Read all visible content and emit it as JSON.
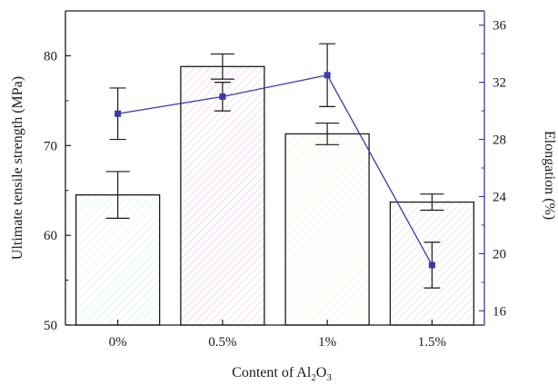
{
  "chart_data": {
    "type": "bar",
    "categories": [
      "0%",
      "0.5%",
      "1%",
      "1.5%"
    ],
    "xlabel": {
      "prefix": "Content of Al",
      "sub1": "2",
      "mid": "O",
      "sub2": "3"
    },
    "ylabel": "Ultimate tensile strength (MPa)",
    "y2label": "Elongation (%)",
    "ylim": [
      50,
      85
    ],
    "y2lim": [
      15,
      37
    ],
    "yticks": [
      50,
      60,
      70,
      80
    ],
    "y2ticks": [
      16,
      20,
      24,
      28,
      32,
      36
    ],
    "bars": {
      "name": "Ultimate tensile strength",
      "values": [
        64.5,
        78.8,
        71.3,
        63.7
      ],
      "errors": [
        2.6,
        1.4,
        1.2,
        0.9
      ],
      "fill_colors": [
        "#c9eef3",
        "#e9b7ea",
        "#f0efc9",
        "#dedbcd"
      ]
    },
    "line": {
      "name": "Elongation",
      "values": [
        29.8,
        31.0,
        32.5,
        19.2
      ],
      "errors": [
        1.8,
        1.0,
        2.2,
        1.6
      ],
      "color": "#3a3aa8"
    }
  }
}
